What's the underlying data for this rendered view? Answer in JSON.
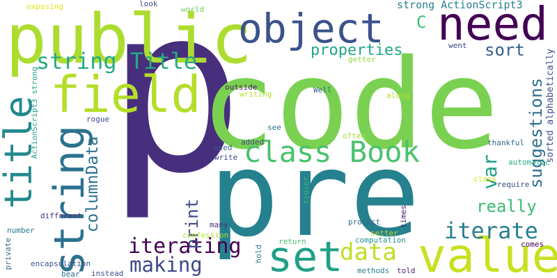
{
  "words": [
    {
      "id": "p",
      "text": "p",
      "color": "#472f7d"
    },
    {
      "id": "code",
      "text": "code",
      "color": "#7ad151"
    },
    {
      "id": "pre",
      "text": "pre",
      "color": "#26818e"
    },
    {
      "id": "public",
      "text": "public",
      "color": "#addc30"
    },
    {
      "id": "object",
      "text": "object",
      "color": "#3b528b"
    },
    {
      "id": "need",
      "text": "need",
      "color": "#440154"
    },
    {
      "id": "value",
      "text": "value",
      "color": "#c8e020"
    },
    {
      "id": "field",
      "text": "field",
      "color": "#b5de2b"
    },
    {
      "id": "title",
      "text": "title",
      "color": "#23898e"
    },
    {
      "id": "string-v",
      "text": "string",
      "color": "#2c728e"
    },
    {
      "id": "class-book",
      "text": "class Book",
      "color": "#4ac16d"
    },
    {
      "id": "set",
      "text": "set",
      "color": "#1fa187"
    },
    {
      "id": "string-title",
      "text": "string Title",
      "color": "#25ab82"
    },
    {
      "id": "iterate",
      "text": "iterate",
      "color": "#277f8e"
    },
    {
      "id": "iterating",
      "text": "iterating",
      "color": "#440154"
    },
    {
      "id": "making",
      "text": "making",
      "color": "#3e4989"
    },
    {
      "id": "columndata",
      "text": "columnData",
      "color": "#2d708e"
    },
    {
      "id": "print",
      "text": "print",
      "color": "#3e4989"
    },
    {
      "id": "data",
      "text": "data",
      "color": "#bddf26"
    },
    {
      "id": "really",
      "text": "really",
      "color": "#3dbc74"
    },
    {
      "id": "var",
      "text": "var",
      "color": "#1f9e89"
    },
    {
      "id": "suggestions",
      "text": "suggestions",
      "color": "#2e6f8e"
    },
    {
      "id": "properties",
      "text": "properties",
      "color": "#22a785"
    },
    {
      "id": "sort",
      "text": "sort",
      "color": "#355f8d"
    },
    {
      "id": "c",
      "text": "C",
      "color": "#3dbc74"
    },
    {
      "id": "strong-as3-top",
      "text": "strong ActionScript3",
      "color": "#27808e"
    },
    {
      "id": "sorted-alpha",
      "text": "sorted alphabetically",
      "color": "#3e4a89"
    },
    {
      "id": "exposing",
      "text": "exposing",
      "color": "#e5e419"
    },
    {
      "id": "look",
      "text": "look",
      "color": "#3e4989"
    },
    {
      "id": "world",
      "text": "world",
      "color": "#6ece58"
    },
    {
      "id": "went",
      "text": "went",
      "color": "#414487"
    },
    {
      "id": "getter",
      "text": "getter",
      "color": "#90d743"
    },
    {
      "id": "outside",
      "text": "outside",
      "color": "#48186a"
    },
    {
      "id": "writing",
      "text": "writing",
      "color": "#b5de2b"
    },
    {
      "id": "well",
      "text": "Well",
      "color": "#33638d"
    },
    {
      "id": "along",
      "text": "along",
      "color": "#b5de2b"
    },
    {
      "id": "rogue",
      "text": "rogue",
      "color": "#3e4a89"
    },
    {
      "id": "see",
      "text": "see",
      "color": "#2c728e"
    },
    {
      "id": "often",
      "text": "often",
      "color": "#a5db36"
    },
    {
      "id": "thankful",
      "text": "thankful",
      "color": "#31688e"
    },
    {
      "id": "strong-as3-v",
      "text": "ActionScript3 strong",
      "color": "#1f9e89"
    },
    {
      "id": "added",
      "text": "added",
      "color": "#3e4989"
    },
    {
      "id": "used",
      "text": "used",
      "color": "#355f8d"
    },
    {
      "id": "write",
      "text": "write",
      "color": "#414487"
    },
    {
      "id": "automatic",
      "text": "automatic",
      "color": "#25ab82"
    },
    {
      "id": "class-small",
      "text": "class",
      "color": "#dde318"
    },
    {
      "id": "require",
      "text": "require",
      "color": "#3e4989"
    },
    {
      "id": "different",
      "text": "different",
      "color": "#472d7b"
    },
    {
      "id": "tidier",
      "text": "tidier",
      "color": "#35b779"
    },
    {
      "id": "times",
      "text": "times",
      "color": "#481f70"
    },
    {
      "id": "protect",
      "text": "protect",
      "color": "#31688e"
    },
    {
      "id": "setter",
      "text": "setter",
      "color": "#b8de29"
    },
    {
      "id": "number",
      "text": "number",
      "color": "#287c8e"
    },
    {
      "id": "confession",
      "text": "confession",
      "color": "#b5de2b"
    },
    {
      "id": "computation",
      "text": "computation",
      "color": "#21918c"
    },
    {
      "id": "many",
      "text": "many",
      "color": "#472d7b"
    },
    {
      "id": "hold",
      "text": "hold",
      "color": "#2a788e"
    },
    {
      "id": "return",
      "text": "return",
      "color": "#46c06f"
    },
    {
      "id": "comes",
      "text": "comes",
      "color": "#440154"
    },
    {
      "id": "private",
      "text": "private",
      "color": "#31688e"
    },
    {
      "id": "encapsulation",
      "text": "encapsulation",
      "color": "#3b528b"
    },
    {
      "id": "bear",
      "text": "bear",
      "color": "#2d708e"
    },
    {
      "id": "instead",
      "text": "instead",
      "color": "#3e4989"
    },
    {
      "id": "methods",
      "text": "methods",
      "color": "#277f8e"
    },
    {
      "id": "told",
      "text": "told",
      "color": "#482878"
    }
  ]
}
